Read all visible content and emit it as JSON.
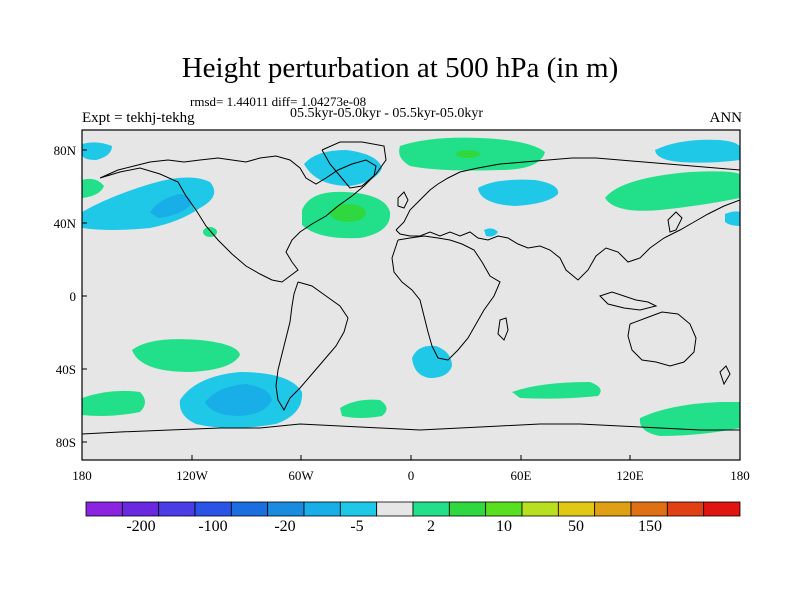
{
  "title": "Height perturbation at 500 hPa (in m)",
  "stats": "rmsd= 1.44011 diff= 1.04273e-08",
  "subtitle": "05.5kyr-05.0kyr - 05.5kyr-05.0kyr",
  "left_label": "Expt = tekhj-tekhg",
  "right_label": "ANN",
  "axes": {
    "x_ticks": [
      "180",
      "120W",
      "60W",
      "0",
      "60E",
      "120E",
      "180"
    ],
    "y_ticks": [
      "80N",
      "40N",
      "0",
      "40S",
      "80S"
    ]
  },
  "colorbar": {
    "labels": [
      "-200",
      "-100",
      "-20",
      "-5",
      "2",
      "10",
      "50",
      "150"
    ],
    "colors": [
      "#8a24e0",
      "#6a28e0",
      "#4a3ce6",
      "#2a54e8",
      "#1a6ee0",
      "#1a8ce0",
      "#18aee8",
      "#20c8e8",
      "#e6e6e6",
      "#22e08a",
      "#30d840",
      "#58e020",
      "#b8e020",
      "#e0c814",
      "#e0a014",
      "#e07014",
      "#e04014",
      "#e01410"
    ]
  },
  "colors": {
    "background_field": "#e6e6e6",
    "positive_anomaly": "#22e08a",
    "positive_core": "#30d840",
    "negative_anomaly": "#20c8e8",
    "negative_core": "#18aee8",
    "coastline": "#000000"
  }
}
